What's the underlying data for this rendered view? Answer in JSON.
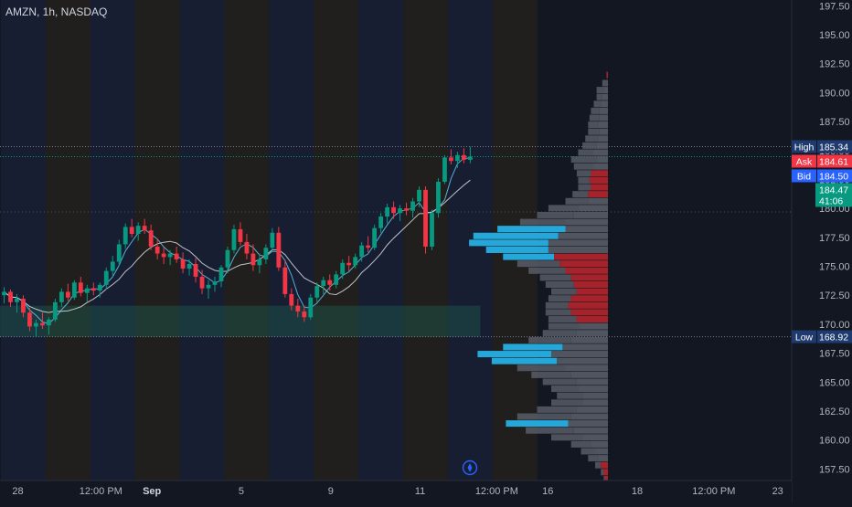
{
  "chart_data": {
    "type": "candlestick",
    "symbol": "AMZN, 1h, NASDAQ",
    "y_axis": {
      "min": 156.5,
      "max": 198,
      "ticks": [
        "157.50",
        "160.00",
        "162.50",
        "165.00",
        "167.50",
        "170.00",
        "172.50",
        "175.00",
        "177.50",
        "180.00",
        "182.50",
        "185.00",
        "187.50",
        "190.00",
        "192.50",
        "195.00",
        "197.50"
      ]
    },
    "x_axis_labels": [
      {
        "text": "28",
        "bar": 1
      },
      {
        "text": "12:00 PM",
        "bar": 14
      },
      {
        "text": "Sep",
        "bar": 22
      },
      {
        "text": "5",
        "bar": 36
      },
      {
        "text": "9",
        "bar": 50
      },
      {
        "text": "11",
        "bar": 64
      },
      {
        "text": "12:00 PM",
        "bar": 76
      },
      {
        "text": "16",
        "bar": 84
      },
      {
        "text": "18",
        "bar": 98
      },
      {
        "text": "12:00 PM",
        "bar": 110
      },
      {
        "text": "23",
        "bar": 120
      }
    ],
    "candles": [
      [
        172.5,
        173.2,
        171.8,
        172.8
      ],
      [
        172.8,
        173.0,
        171.5,
        171.9
      ],
      [
        171.9,
        172.6,
        171.0,
        172.2
      ],
      [
        172.2,
        172.5,
        170.6,
        171.0
      ],
      [
        171.0,
        171.4,
        169.4,
        169.8
      ],
      [
        169.8,
        170.4,
        168.9,
        170.1
      ],
      [
        170.1,
        171.0,
        169.6,
        169.9
      ],
      [
        169.9,
        170.6,
        169.1,
        170.4
      ],
      [
        170.4,
        172.2,
        170.2,
        171.9
      ],
      [
        171.9,
        173.1,
        171.5,
        172.8
      ],
      [
        172.8,
        173.5,
        172.0,
        172.3
      ],
      [
        172.3,
        173.8,
        172.1,
        173.6
      ],
      [
        173.6,
        174.1,
        172.4,
        172.7
      ],
      [
        172.7,
        173.4,
        171.9,
        173.1
      ],
      [
        173.1,
        173.6,
        172.5,
        172.9
      ],
      [
        172.9,
        173.6,
        172.3,
        173.4
      ],
      [
        173.4,
        174.9,
        173.0,
        174.6
      ],
      [
        174.6,
        175.9,
        174.1,
        175.4
      ],
      [
        175.4,
        177.3,
        175.0,
        176.9
      ],
      [
        176.9,
        178.7,
        176.5,
        178.4
      ],
      [
        178.4,
        179.1,
        177.5,
        177.8
      ],
      [
        177.8,
        178.8,
        177.2,
        178.5
      ],
      [
        178.5,
        179.1,
        177.8,
        178.1
      ],
      [
        178.1,
        178.6,
        176.4,
        176.7
      ],
      [
        176.7,
        177.4,
        175.6,
        176.1
      ],
      [
        176.1,
        176.6,
        175.2,
        175.8
      ],
      [
        175.8,
        176.4,
        175.1,
        176.1
      ],
      [
        176.1,
        176.7,
        175.3,
        175.6
      ],
      [
        175.6,
        176.2,
        174.4,
        174.8
      ],
      [
        174.8,
        175.6,
        174.2,
        175.2
      ],
      [
        175.2,
        175.7,
        173.6,
        174.1
      ],
      [
        174.1,
        174.7,
        172.6,
        173.1
      ],
      [
        173.1,
        173.8,
        172.2,
        173.4
      ],
      [
        173.4,
        174.1,
        172.8,
        173.7
      ],
      [
        173.7,
        175.1,
        173.2,
        174.9
      ],
      [
        174.9,
        176.7,
        174.4,
        176.4
      ],
      [
        176.4,
        178.6,
        176.1,
        178.2
      ],
      [
        178.2,
        178.8,
        176.8,
        177.1
      ],
      [
        177.1,
        177.8,
        175.6,
        176.1
      ],
      [
        176.1,
        176.9,
        174.6,
        175.1
      ],
      [
        175.1,
        176.1,
        174.4,
        175.6
      ],
      [
        175.6,
        176.9,
        175.2,
        176.6
      ],
      [
        176.6,
        178.3,
        176.2,
        177.9
      ],
      [
        177.9,
        178.4,
        174.6,
        174.9
      ],
      [
        174.9,
        175.6,
        172.3,
        172.6
      ],
      [
        172.6,
        173.1,
        171.2,
        171.6
      ],
      [
        171.6,
        172.2,
        170.6,
        171.1
      ],
      [
        171.1,
        171.6,
        170.2,
        170.6
      ],
      [
        170.6,
        172.6,
        170.4,
        172.3
      ],
      [
        172.3,
        173.6,
        171.9,
        173.3
      ],
      [
        173.3,
        174.1,
        172.6,
        173.8
      ],
      [
        173.8,
        174.3,
        172.9,
        173.4
      ],
      [
        173.4,
        174.6,
        173.1,
        174.3
      ],
      [
        174.3,
        175.6,
        173.9,
        175.3
      ],
      [
        175.3,
        175.9,
        174.6,
        175.1
      ],
      [
        175.1,
        176.1,
        174.8,
        175.8
      ],
      [
        175.8,
        177.1,
        175.4,
        176.8
      ],
      [
        176.8,
        177.6,
        176.2,
        176.6
      ],
      [
        176.6,
        178.6,
        176.4,
        178.3
      ],
      [
        178.3,
        179.6,
        177.9,
        179.3
      ],
      [
        179.3,
        180.4,
        178.7,
        180.1
      ],
      [
        180.1,
        180.6,
        179.1,
        179.6
      ],
      [
        179.6,
        180.3,
        178.9,
        180.0
      ],
      [
        180.0,
        180.5,
        179.4,
        179.8
      ],
      [
        179.8,
        180.9,
        179.2,
        180.6
      ],
      [
        180.6,
        181.9,
        180.1,
        181.6
      ],
      [
        181.6,
        181.9,
        176.1,
        176.7
      ],
      [
        176.7,
        179.9,
        176.4,
        179.6
      ],
      [
        179.6,
        182.6,
        179.2,
        182.3
      ],
      [
        182.3,
        184.6,
        182.1,
        184.4
      ],
      [
        184.4,
        185.1,
        183.8,
        184.1
      ],
      [
        184.1,
        184.9,
        183.5,
        184.6
      ],
      [
        184.6,
        185.2,
        183.9,
        184.2
      ],
      [
        184.2,
        185.34,
        183.9,
        184.47
      ]
    ],
    "volume_profile": [
      {
        "price": 191.5,
        "up": 0,
        "down": 1
      },
      {
        "price": 190.8,
        "up": 3,
        "down": 1
      },
      {
        "price": 190.2,
        "up": 5,
        "down": 3
      },
      {
        "price": 189.6,
        "up": 4,
        "down": 4
      },
      {
        "price": 189.0,
        "up": 5,
        "down": 5
      },
      {
        "price": 188.4,
        "up": 6,
        "down": 6
      },
      {
        "price": 187.8,
        "up": 7,
        "down": 6
      },
      {
        "price": 187.2,
        "up": 7,
        "down": 7
      },
      {
        "price": 186.6,
        "up": 8,
        "down": 6
      },
      {
        "price": 186.0,
        "up": 9,
        "down": 7
      },
      {
        "price": 185.4,
        "up": 10,
        "down": 8
      },
      {
        "price": 184.8,
        "up": 11,
        "down": 10
      },
      {
        "price": 184.2,
        "up": 18,
        "down": 8
      },
      {
        "price": 183.6,
        "up": 14,
        "down": 10
      },
      {
        "price": 183.0,
        "up": 10,
        "down": 12
      },
      {
        "price": 182.4,
        "up": 8,
        "down": 13
      },
      {
        "price": 181.8,
        "up": 9,
        "down": 12
      },
      {
        "price": 181.2,
        "up": 11,
        "down": 14
      },
      {
        "price": 180.6,
        "up": 16,
        "down": 14
      },
      {
        "price": 180.0,
        "up": 22,
        "down": 20
      },
      {
        "price": 179.4,
        "up": 26,
        "down": 24
      },
      {
        "price": 178.8,
        "up": 32,
        "down": 30
      },
      {
        "price": 178.2,
        "up": 48,
        "down": 30
      },
      {
        "price": 177.6,
        "up": 60,
        "down": 35
      },
      {
        "price": 177.0,
        "up": 56,
        "down": 42
      },
      {
        "price": 176.4,
        "up": 44,
        "down": 42
      },
      {
        "price": 175.8,
        "up": 36,
        "down": 38
      },
      {
        "price": 175.2,
        "up": 30,
        "down": 34
      },
      {
        "price": 174.6,
        "up": 26,
        "down": 30
      },
      {
        "price": 174.0,
        "up": 22,
        "down": 26
      },
      {
        "price": 173.4,
        "up": 20,
        "down": 24
      },
      {
        "price": 172.8,
        "up": 18,
        "down": 22
      },
      {
        "price": 172.2,
        "up": 16,
        "down": 26
      },
      {
        "price": 171.6,
        "up": 16,
        "down": 28
      },
      {
        "price": 171.0,
        "up": 18,
        "down": 26
      },
      {
        "price": 170.4,
        "up": 20,
        "down": 22
      },
      {
        "price": 169.8,
        "up": 22,
        "down": 20
      },
      {
        "price": 169.2,
        "up": 24,
        "down": 22
      },
      {
        "price": 168.6,
        "up": 30,
        "down": 26
      },
      {
        "price": 168.0,
        "up": 42,
        "down": 32
      },
      {
        "price": 167.4,
        "up": 52,
        "down": 40
      },
      {
        "price": 166.8,
        "up": 46,
        "down": 36
      },
      {
        "price": 166.2,
        "up": 34,
        "down": 30
      },
      {
        "price": 165.6,
        "up": 28,
        "down": 26
      },
      {
        "price": 165.0,
        "up": 24,
        "down": 22
      },
      {
        "price": 164.4,
        "up": 20,
        "down": 20
      },
      {
        "price": 163.8,
        "up": 18,
        "down": 18
      },
      {
        "price": 163.2,
        "up": 22,
        "down": 18
      },
      {
        "price": 162.6,
        "up": 28,
        "down": 22
      },
      {
        "price": 162.0,
        "up": 38,
        "down": 26
      },
      {
        "price": 161.4,
        "up": 44,
        "down": 28
      },
      {
        "price": 160.8,
        "up": 34,
        "down": 24
      },
      {
        "price": 160.2,
        "up": 22,
        "down": 18
      },
      {
        "price": 159.6,
        "up": 14,
        "down": 12
      },
      {
        "price": 159.0,
        "up": 10,
        "down": 9
      },
      {
        "price": 158.4,
        "up": 7,
        "down": 7
      },
      {
        "price": 157.8,
        "up": 4,
        "down": 5
      },
      {
        "price": 157.2,
        "up": 2,
        "down": 3
      },
      {
        "price": 156.6,
        "up": 1,
        "down": 2
      }
    ],
    "support_zone": {
      "low": 168.9,
      "high": 171.6
    },
    "price_labels": {
      "high": {
        "label": "High",
        "value": "185.34",
        "price": 185.34,
        "color": "#1e3a6e"
      },
      "ask": {
        "label": "Ask",
        "value": "184.61",
        "price": 184.61,
        "color": "#f23645"
      },
      "bid": {
        "label": "Bid",
        "value": "184.50",
        "price": 184.5,
        "color": "#2962ff"
      },
      "last": {
        "value": "184.47",
        "timer": "41:06",
        "price": 184.47,
        "color": "#089981"
      },
      "low": {
        "label": "Low",
        "value": "168.92",
        "price": 168.92,
        "color": "#1e3a6e"
      }
    },
    "colors": {
      "background": "#131722",
      "up": "#089981",
      "down": "#f23645",
      "ma_fast": "#5bc0eb",
      "ma_slow": "#d1d4dc",
      "vp_up": "#26a7d9",
      "vp_down": "#c2262e",
      "vp_neutral": "#5d606b",
      "session_blue": "#1c2540",
      "session_orange": "#2b2619"
    },
    "grid": false
  }
}
